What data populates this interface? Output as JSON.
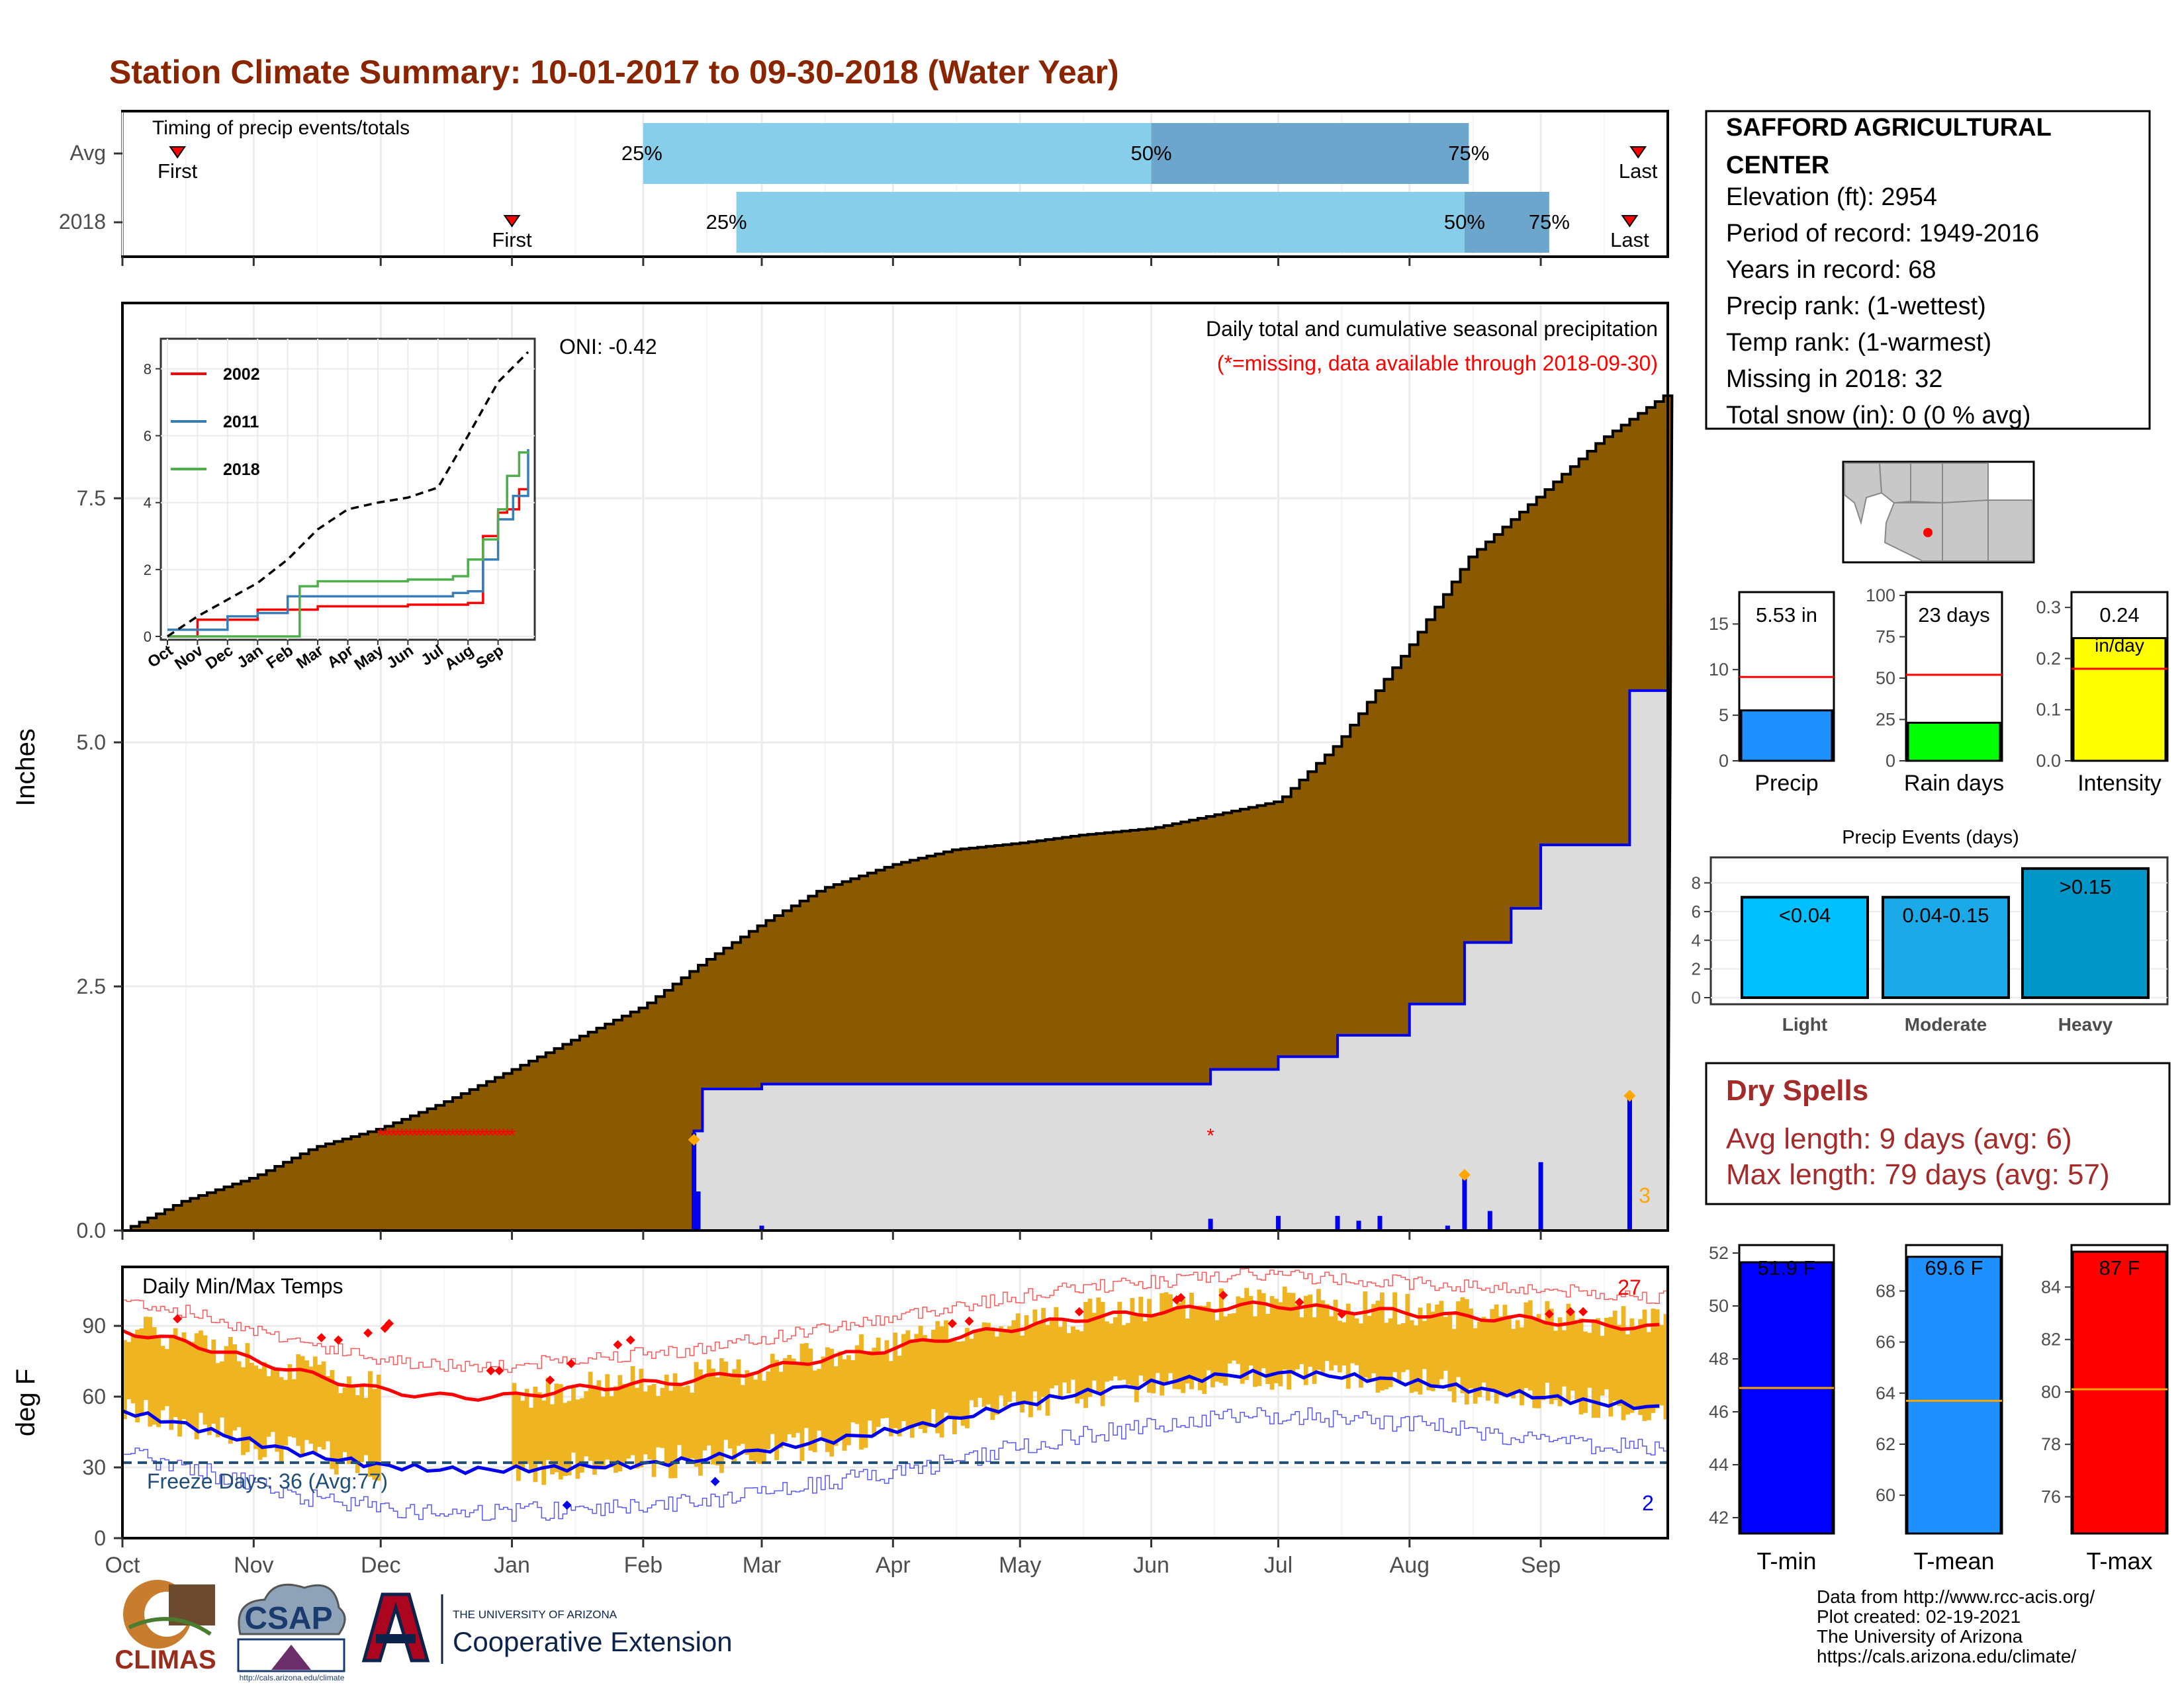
{
  "title": "Station Climate Summary: 10-01-2017 to 09-30-2018 (Water Year)",
  "months": [
    "Oct",
    "Nov",
    "Dec",
    "Jan",
    "Feb",
    "Mar",
    "Apr",
    "May",
    "Jun",
    "Jul",
    "Aug",
    "Sep"
  ],
  "station": {
    "name_line1": "SAFFORD AGRICULTURAL",
    "name_line2": "CENTER",
    "lines": [
      "Elevation (ft): 2954",
      "Period of record: 1949-2016",
      "Years in record: 68",
      "Precip rank:  (1-wettest)",
      "Temp rank:  (1-warmest)",
      "Missing in 2018: 32",
      "Total snow (in): 0 (0 % avg)"
    ]
  },
  "dry_spells": {
    "title": "Dry Spells",
    "avg": "Avg length: 9 days (avg: 6)",
    "max": "Max length: 79 days (avg: 57)"
  },
  "credits": [
    "Data from http://www.rcc-acis.org/",
    "Plot created: 02-19-2021",
    "The University of Arizona",
    "https://cals.arizona.edu/climate/"
  ],
  "logos": {
    "climas": "CLIMAS",
    "csap": "CSAP",
    "csap_url": "http://cals.arizona.edu/climate",
    "ua_small": "THE UNIVERSITY OF ARIZONA",
    "ua_big": "Cooperative Extension"
  },
  "colors": {
    "title": "#8B2500",
    "cum_avg": "#8B5A00",
    "cum_2018_fill": "#DCDCDC",
    "line_blue": "#0000EE",
    "light_blue": "#87CEEB",
    "mid_blue": "#6CA6CD",
    "orange": "#FFA500",
    "temp_bar": "#EEB422",
    "red": "#FF0000",
    "dry_red": "#A52A2A"
  },
  "chart_data": [
    {
      "id": "timing",
      "type": "bar",
      "title": "Timing of precip events/totals",
      "rows": [
        "Avg",
        "2018"
      ],
      "x_axis": "date (water year)",
      "series": [
        {
          "name": "Avg",
          "first": "2017-10-14",
          "p25": "2018-02-01",
          "p50": "2018-06-01",
          "p75": "2018-08-15",
          "last": "2018-09-24"
        },
        {
          "name": "2018",
          "first": "2018-01-01",
          "p25": "2018-02-23",
          "p50": "2018-08-14",
          "p75": "2018-09-03",
          "last": "2018-09-22"
        }
      ],
      "labels": {
        "p25": "25%",
        "p50": "50%",
        "p75": "75%",
        "first": "First",
        "last": "Last"
      }
    },
    {
      "id": "cumulative",
      "type": "area",
      "title": "Daily total and cumulative seasonal precipitation",
      "subtitle": "(*=missing, data available through 2018-09-30)",
      "ylabel": "Inches",
      "ylim": [
        0,
        9.5
      ],
      "yticks": [
        0.0,
        2.5,
        5.0,
        7.5
      ],
      "ytick_labels": [
        "0.0",
        "2.5",
        "5.0",
        "7.5"
      ],
      "oni": "ONI: -0.42",
      "extreme_count": "3",
      "avg_cumulative": [
        [
          "2017-10-01",
          0
        ],
        [
          "2017-10-15",
          0.3
        ],
        [
          "2017-11-01",
          0.55
        ],
        [
          "2017-11-15",
          0.85
        ],
        [
          "2017-12-01",
          1.05
        ],
        [
          "2017-12-15",
          1.3
        ],
        [
          "2018-01-01",
          1.65
        ],
        [
          "2018-01-15",
          1.95
        ],
        [
          "2018-02-01",
          2.3
        ],
        [
          "2018-02-15",
          2.75
        ],
        [
          "2018-03-01",
          3.15
        ],
        [
          "2018-03-15",
          3.5
        ],
        [
          "2018-04-01",
          3.75
        ],
        [
          "2018-04-15",
          3.9
        ],
        [
          "2018-05-01",
          3.97
        ],
        [
          "2018-05-15",
          4.05
        ],
        [
          "2018-06-01",
          4.12
        ],
        [
          "2018-06-15",
          4.25
        ],
        [
          "2018-07-01",
          4.4
        ],
        [
          "2018-07-15",
          5.0
        ],
        [
          "2018-08-01",
          6.0
        ],
        [
          "2018-08-15",
          6.9
        ],
        [
          "2018-09-01",
          7.55
        ],
        [
          "2018-09-15",
          8.1
        ],
        [
          "2018-09-30",
          8.55
        ]
      ],
      "cumulative_2018": [
        [
          "2017-10-01",
          0
        ],
        [
          "2018-02-12",
          0
        ],
        [
          "2018-02-13",
          1.02
        ],
        [
          "2018-02-15",
          1.45
        ],
        [
          "2018-03-01",
          1.5
        ],
        [
          "2018-06-15",
          1.65
        ],
        [
          "2018-07-01",
          1.78
        ],
        [
          "2018-07-15",
          2.0
        ],
        [
          "2018-08-01",
          2.32
        ],
        [
          "2018-08-14",
          2.95
        ],
        [
          "2018-08-25",
          3.3
        ],
        [
          "2018-09-01",
          3.95
        ],
        [
          "2018-09-22",
          5.53
        ],
        [
          "2018-09-30",
          5.53
        ]
      ],
      "daily_2018": [
        [
          "2018-02-13",
          1.0
        ],
        [
          "2018-02-14",
          0.4
        ],
        [
          "2018-03-01",
          0.05
        ],
        [
          "2018-06-15",
          0.12
        ],
        [
          "2018-07-01",
          0.15
        ],
        [
          "2018-07-15",
          0.15
        ],
        [
          "2018-07-20",
          0.1
        ],
        [
          "2018-07-25",
          0.15
        ],
        [
          "2018-08-10",
          0.05
        ],
        [
          "2018-08-14",
          0.55
        ],
        [
          "2018-08-20",
          0.2
        ],
        [
          "2018-09-01",
          0.7
        ],
        [
          "2018-09-22",
          1.35
        ]
      ],
      "extreme_markers": [
        [
          "2018-02-13",
          0.93
        ],
        [
          "2018-08-14",
          0.57
        ],
        [
          "2018-09-22",
          1.38
        ]
      ],
      "missing_markers": [
        [
          "2017-12-01",
          1.0
        ],
        [
          "2018-01-01",
          1.0
        ],
        [
          "2018-06-15",
          1.0
        ]
      ]
    },
    {
      "id": "inset",
      "type": "line",
      "yticks": [
        0,
        2,
        4,
        6,
        8
      ],
      "xticks": [
        "Oct",
        "Nov",
        "Dec",
        "Jan",
        "Feb",
        "Mar",
        "Apr",
        "May",
        "Jun",
        "Jul",
        "Aug",
        "Sep"
      ],
      "series": [
        {
          "name": "2002",
          "color": "#FF0000",
          "values": [
            [
              0,
              0
            ],
            [
              1,
              0.5
            ],
            [
              3,
              0.8
            ],
            [
              5,
              0.9
            ],
            [
              8,
              0.95
            ],
            [
              10,
              1.0
            ],
            [
              10.5,
              3.0
            ],
            [
              11,
              3.7
            ],
            [
              11.3,
              3.8
            ],
            [
              11.7,
              4.4
            ],
            [
              12,
              4.4
            ]
          ]
        },
        {
          "name": "2011",
          "color": "#377EB8",
          "values": [
            [
              0,
              0.2
            ],
            [
              2,
              0.6
            ],
            [
              3,
              0.7
            ],
            [
              4,
              1.2
            ],
            [
              8,
              1.2
            ],
            [
              9.5,
              1.3
            ],
            [
              10,
              1.35
            ],
            [
              10.5,
              2.3
            ],
            [
              11,
              3.5
            ],
            [
              11.5,
              4.2
            ],
            [
              12,
              5.6
            ]
          ]
        },
        {
          "name": "2018",
          "color": "#4DAF4A",
          "values": [
            [
              0,
              0
            ],
            [
              4.1,
              0
            ],
            [
              4.4,
              1.5
            ],
            [
              5,
              1.65
            ],
            [
              8,
              1.7
            ],
            [
              9.5,
              1.8
            ],
            [
              10,
              2.3
            ],
            [
              10.5,
              2.9
            ],
            [
              11,
              3.8
            ],
            [
              11.3,
              4.8
            ],
            [
              11.7,
              5.5
            ],
            [
              12,
              5.53
            ]
          ]
        },
        {
          "name": "avg",
          "color": "#000000",
          "dashed": true,
          "values": [
            [
              0,
              0
            ],
            [
              1,
              0.6
            ],
            [
              2,
              1.1
            ],
            [
              3,
              1.6
            ],
            [
              4,
              2.3
            ],
            [
              5,
              3.2
            ],
            [
              6,
              3.8
            ],
            [
              7,
              4.0
            ],
            [
              8,
              4.15
            ],
            [
              9,
              4.45
            ],
            [
              10,
              6.0
            ],
            [
              11,
              7.6
            ],
            [
              12,
              8.5
            ]
          ]
        }
      ]
    },
    {
      "id": "temps",
      "type": "area",
      "title": "Daily Min/Max Temps",
      "ylabel": "deg F",
      "ylim": [
        0,
        115
      ],
      "yticks": [
        0,
        30,
        60,
        90
      ],
      "freeze": "Freeze Days: 36 (Avg:77)",
      "freeze_line": 32,
      "max_records": "27",
      "min_records": "2",
      "normal_max": [
        [
          0,
          88
        ],
        [
          15,
          83
        ],
        [
          30,
          76
        ],
        [
          45,
          69
        ],
        [
          60,
          63
        ],
        [
          75,
          60
        ],
        [
          92,
          60
        ],
        [
          105,
          63
        ],
        [
          120,
          65
        ],
        [
          135,
          67
        ],
        [
          150,
          71
        ],
        [
          165,
          76
        ],
        [
          180,
          80
        ],
        [
          195,
          85
        ],
        [
          210,
          89
        ],
        [
          225,
          93
        ],
        [
          245,
          96
        ],
        [
          260,
          98
        ],
        [
          272,
          99
        ],
        [
          285,
          97
        ],
        [
          300,
          96
        ],
        [
          315,
          94
        ],
        [
          330,
          93
        ],
        [
          345,
          91
        ],
        [
          364,
          89
        ]
      ],
      "normal_min": [
        [
          0,
          54
        ],
        [
          15,
          48
        ],
        [
          30,
          41
        ],
        [
          45,
          35
        ],
        [
          60,
          31
        ],
        [
          75,
          29
        ],
        [
          92,
          29
        ],
        [
          105,
          30
        ],
        [
          120,
          31
        ],
        [
          135,
          33
        ],
        [
          150,
          37
        ],
        [
          165,
          41
        ],
        [
          180,
          45
        ],
        [
          195,
          50
        ],
        [
          210,
          56
        ],
        [
          225,
          61
        ],
        [
          245,
          66
        ],
        [
          260,
          69
        ],
        [
          272,
          70
        ],
        [
          285,
          69
        ],
        [
          300,
          67
        ],
        [
          315,
          64
        ],
        [
          330,
          61
        ],
        [
          345,
          58
        ],
        [
          364,
          55
        ]
      ],
      "record_max_markers": [
        [
          13,
          93
        ],
        [
          47,
          85
        ],
        [
          51,
          84
        ],
        [
          58,
          87
        ],
        [
          62,
          89
        ],
        [
          63,
          91
        ],
        [
          87,
          71
        ],
        [
          89,
          71
        ],
        [
          101,
          67
        ],
        [
          106,
          74
        ],
        [
          117,
          82
        ],
        [
          120,
          84
        ],
        [
          196,
          91
        ],
        [
          200,
          92
        ],
        [
          226,
          96
        ],
        [
          249,
          101
        ],
        [
          250,
          102
        ],
        [
          260,
          103
        ],
        [
          278,
          100
        ],
        [
          288,
          95
        ],
        [
          337,
          95
        ],
        [
          342,
          96
        ],
        [
          345,
          96
        ]
      ],
      "record_min_markers": [
        [
          105,
          14
        ],
        [
          140,
          24
        ]
      ]
    },
    {
      "id": "precip_bars",
      "type": "bar",
      "series": [
        {
          "name": "Precip",
          "value": 5.53,
          "normal": 9.2,
          "ylim": [
            0,
            18.5
          ],
          "yticks": [
            0,
            5,
            10,
            15
          ],
          "label": "5.53 in",
          "color": "#1E90FF"
        },
        {
          "name": "Rain days",
          "value": 23,
          "normal": 52,
          "ylim": [
            0,
            102
          ],
          "yticks": [
            0,
            25,
            50,
            75,
            100
          ],
          "label": "23 days",
          "color": "#00FF00"
        },
        {
          "name": "Intensity",
          "value": 0.24,
          "normal": 0.18,
          "ylim": [
            0,
            0.33
          ],
          "yticks": [
            0.0,
            0.1,
            0.2,
            0.3
          ],
          "label": "0.24",
          "label2": "in/day",
          "color": "#FFFF00"
        }
      ]
    },
    {
      "id": "precip_events",
      "type": "bar",
      "title": "Precip Events (days)",
      "categories": [
        "Light",
        "Moderate",
        "Heavy"
      ],
      "values": [
        7,
        7,
        9
      ],
      "bar_labels": [
        "<0.04",
        "0.04-0.15",
        ">0.15"
      ],
      "yticks": [
        0,
        2,
        4,
        6,
        8
      ],
      "ylim": [
        0,
        9.5
      ],
      "colors": [
        "#00BFFF",
        "#1CA9E8",
        "#0096C8"
      ]
    },
    {
      "id": "temp_bars",
      "type": "bar",
      "series": [
        {
          "name": "T-min",
          "value": 51.9,
          "normal": 46.9,
          "ylim": [
            41.4,
            52.3
          ],
          "yticks": [
            42,
            44,
            46,
            48,
            50,
            52
          ],
          "label": "51.9 F",
          "color": "#0000FF"
        },
        {
          "name": "T-mean",
          "value": 69.6,
          "normal": 63.7,
          "ylim": [
            58.5,
            69.8
          ],
          "yticks": [
            60,
            62,
            64,
            66,
            68
          ],
          "label": "69.6 F",
          "color": "#1E90FF"
        },
        {
          "name": "T-max",
          "value": 87,
          "normal": 80.1,
          "ylim": [
            74.6,
            85.6
          ],
          "yticks": [
            76,
            78,
            80,
            82,
            84
          ],
          "label": "87 F",
          "color": "#FF0000"
        }
      ]
    }
  ]
}
